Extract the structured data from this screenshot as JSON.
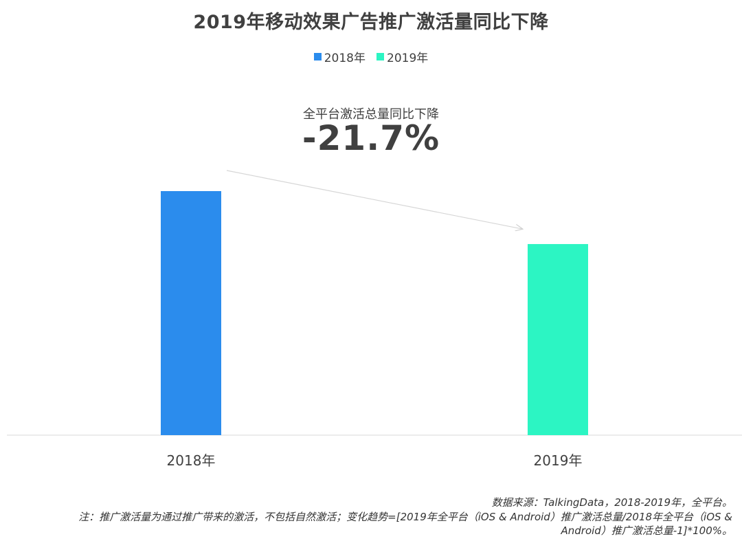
{
  "chart_data": {
    "type": "bar",
    "title": "2019年移动效果广告推广激活量同比下降",
    "categories": [
      "2018年",
      "2019年"
    ],
    "series": [
      {
        "name": "2018年",
        "color": "#2b8ced",
        "values": [
          100,
          null
        ]
      },
      {
        "name": "2019年",
        "color": "#2cf5c3",
        "values": [
          null,
          78.3
        ]
      }
    ],
    "ylim": [
      0,
      100
    ],
    "xlabel": "",
    "ylabel": "",
    "grid": false,
    "legend": "top-center",
    "annotation": {
      "label": "全平台激活总量同比下降",
      "value": "-21.7%"
    }
  },
  "footnotes": {
    "source": "数据来源：TalkingData，2018-2019年，全平台。",
    "note_line1": "注：推广激活量为通过推广带来的激活，不包括自然激活；变化趋势=[2019年全平台（iOS & Android）推广激活总量/2018年全平台（iOS &",
    "note_line2": "Android）推广激活总量-1]*100%。"
  }
}
